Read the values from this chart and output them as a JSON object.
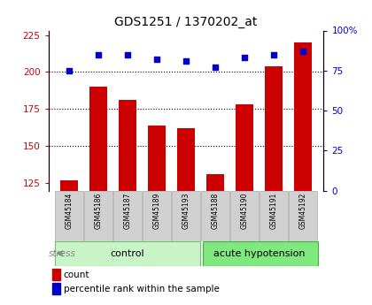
{
  "title": "GDS1251 / 1370202_at",
  "samples": [
    "GSM45184",
    "GSM45186",
    "GSM45187",
    "GSM45189",
    "GSM45193",
    "GSM45188",
    "GSM45190",
    "GSM45191",
    "GSM45192"
  ],
  "counts": [
    127,
    190,
    181,
    164,
    162,
    131,
    178,
    204,
    220
  ],
  "percentiles": [
    75,
    85,
    85,
    82,
    81,
    77,
    83,
    85,
    87
  ],
  "group_labels": [
    "control",
    "acute hypotension"
  ],
  "group_colors": [
    "#c8f5c8",
    "#7fe87f"
  ],
  "bar_color": "#cc0000",
  "dot_color": "#0000cc",
  "ylim_left": [
    120,
    228
  ],
  "yticks_left": [
    125,
    150,
    175,
    200,
    225
  ],
  "ylim_right": [
    0,
    100
  ],
  "yticks_right": [
    0,
    25,
    50,
    75,
    100
  ],
  "left_tick_color": "#cc0000",
  "right_tick_color": "#0000cc",
  "bar_width": 0.6,
  "stress_label": "stress",
  "legend_count_label": "count",
  "legend_pct_label": "percentile rank within the sample",
  "background_color": "#ffffff",
  "grid_color": "black",
  "control_count": 5,
  "acute_count": 4,
  "gridlines": [
    200,
    175,
    150
  ],
  "sample_box_color": "#d0d0d0",
  "sample_box_edge": "#aaaaaa"
}
